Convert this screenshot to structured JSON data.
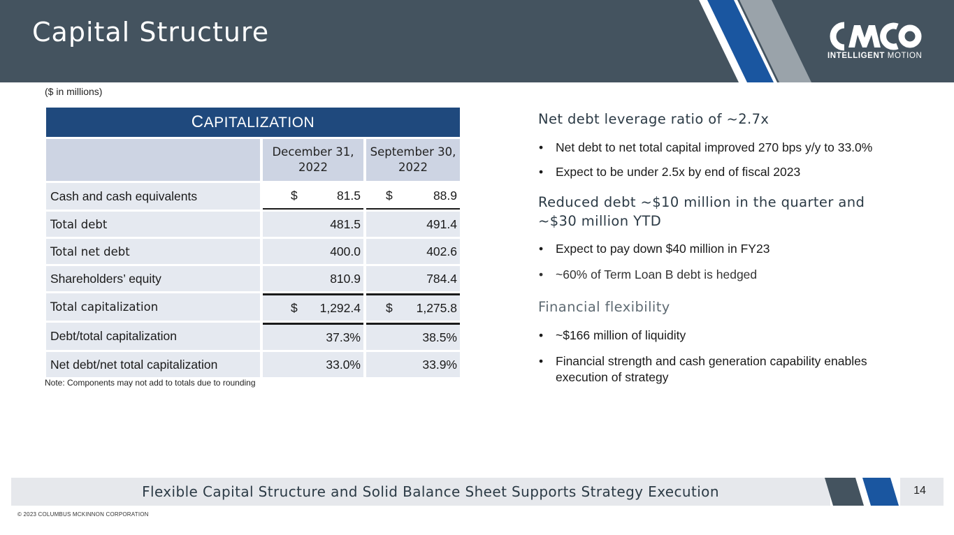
{
  "header": {
    "title": "Capital Structure",
    "logo": {
      "wordmark": "CMCO",
      "tagline_bold": "INTELLIGENT",
      "tagline_light": "MOTION"
    }
  },
  "colors": {
    "header_bg": "#44535f",
    "navy": "#1f497d",
    "stripe_blue": "#1a56a0",
    "stripe_gray": "#9aa3aa"
  },
  "units_note": "($ in millions)",
  "table": {
    "title_first": "C",
    "title_rest": "APITALIZATION",
    "columns": [
      "December 31,\n2022",
      "September 30,\n2022"
    ],
    "col1_l1": "December 31,",
    "col1_l2": "2022",
    "col2_l1": "September 30,",
    "col2_l2": "2022",
    "rows": [
      {
        "label": "Cash and cash equivalents",
        "d1": "$",
        "v1": "81.5",
        "d2": "$",
        "v2": "88.9"
      },
      {
        "label": "Total debt",
        "v1": "481.5",
        "v2": "491.4"
      },
      {
        "label": "Total net debt",
        "v1": "400.0",
        "v2": "402.6"
      },
      {
        "label": "Shareholders’ equity",
        "v1": "810.9",
        "v2": "784.4"
      },
      {
        "label": "Total capitalization",
        "d1": "$",
        "v1": "1,292.4",
        "d2": "$",
        "v2": "1,275.8"
      },
      {
        "label": "Debt/total capitalization",
        "v1": "37.3%",
        "v2": "38.5%"
      },
      {
        "label": "Net debt/net total capitalization",
        "v1": "33.0%",
        "v2": "33.9%"
      }
    ]
  },
  "note": "Note: Components may not add to totals due to rounding",
  "right": {
    "sections": [
      {
        "heading": "Net debt leverage ratio of ~2.7x",
        "bullets": [
          "Net debt to net total capital improved 270 bps y/y to 33.0%",
          "Expect to be under 2.5x by end of fiscal 2023"
        ]
      },
      {
        "heading": "Reduced debt ~$10 million in the quarter and ~$30 million YTD",
        "bullets": [
          "Expect to pay down $40 million in FY23",
          "~60% of Term Loan B debt is hedged"
        ]
      },
      {
        "heading": "Financial flexibility",
        "bullets": [
          "~$166 million of liquidity",
          "Financial strength and cash generation capability enables execution of strategy"
        ]
      }
    ]
  },
  "footer": {
    "text": "Flexible Capital Structure and Solid Balance Sheet Supports Strategy Execution",
    "page": "14",
    "copyright": "© 2023 COLUMBUS MCKINNON CORPORATION"
  }
}
